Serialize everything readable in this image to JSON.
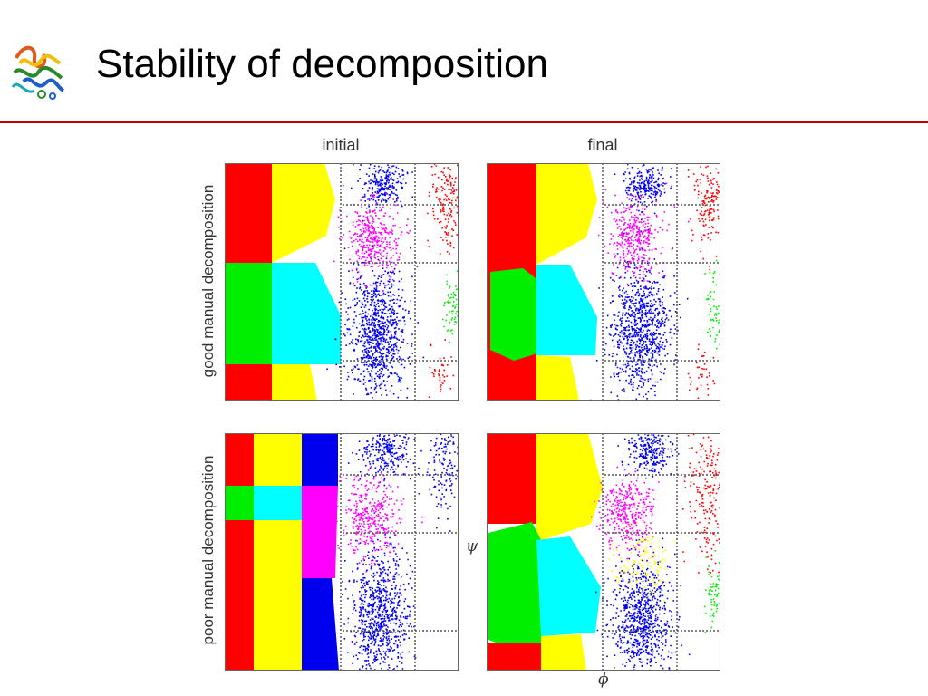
{
  "slide": {
    "title": "Stability of decomposition",
    "accent_color": "#c00000",
    "logo_icon": "protein-structure-icon"
  },
  "figure": {
    "column_labels": [
      "initial",
      "final"
    ],
    "row_labels": [
      "good manual decomposition",
      "poor manual decomposition"
    ],
    "phi_label": "ϕ",
    "psi_label": "ψ",
    "cluster_colors": {
      "red": "#ff0000",
      "yellow": "#ffff00",
      "green": "#00ee00",
      "cyan": "#00ffff",
      "blue": "#0000ee",
      "magenta": "#ff00ff"
    }
  }
}
